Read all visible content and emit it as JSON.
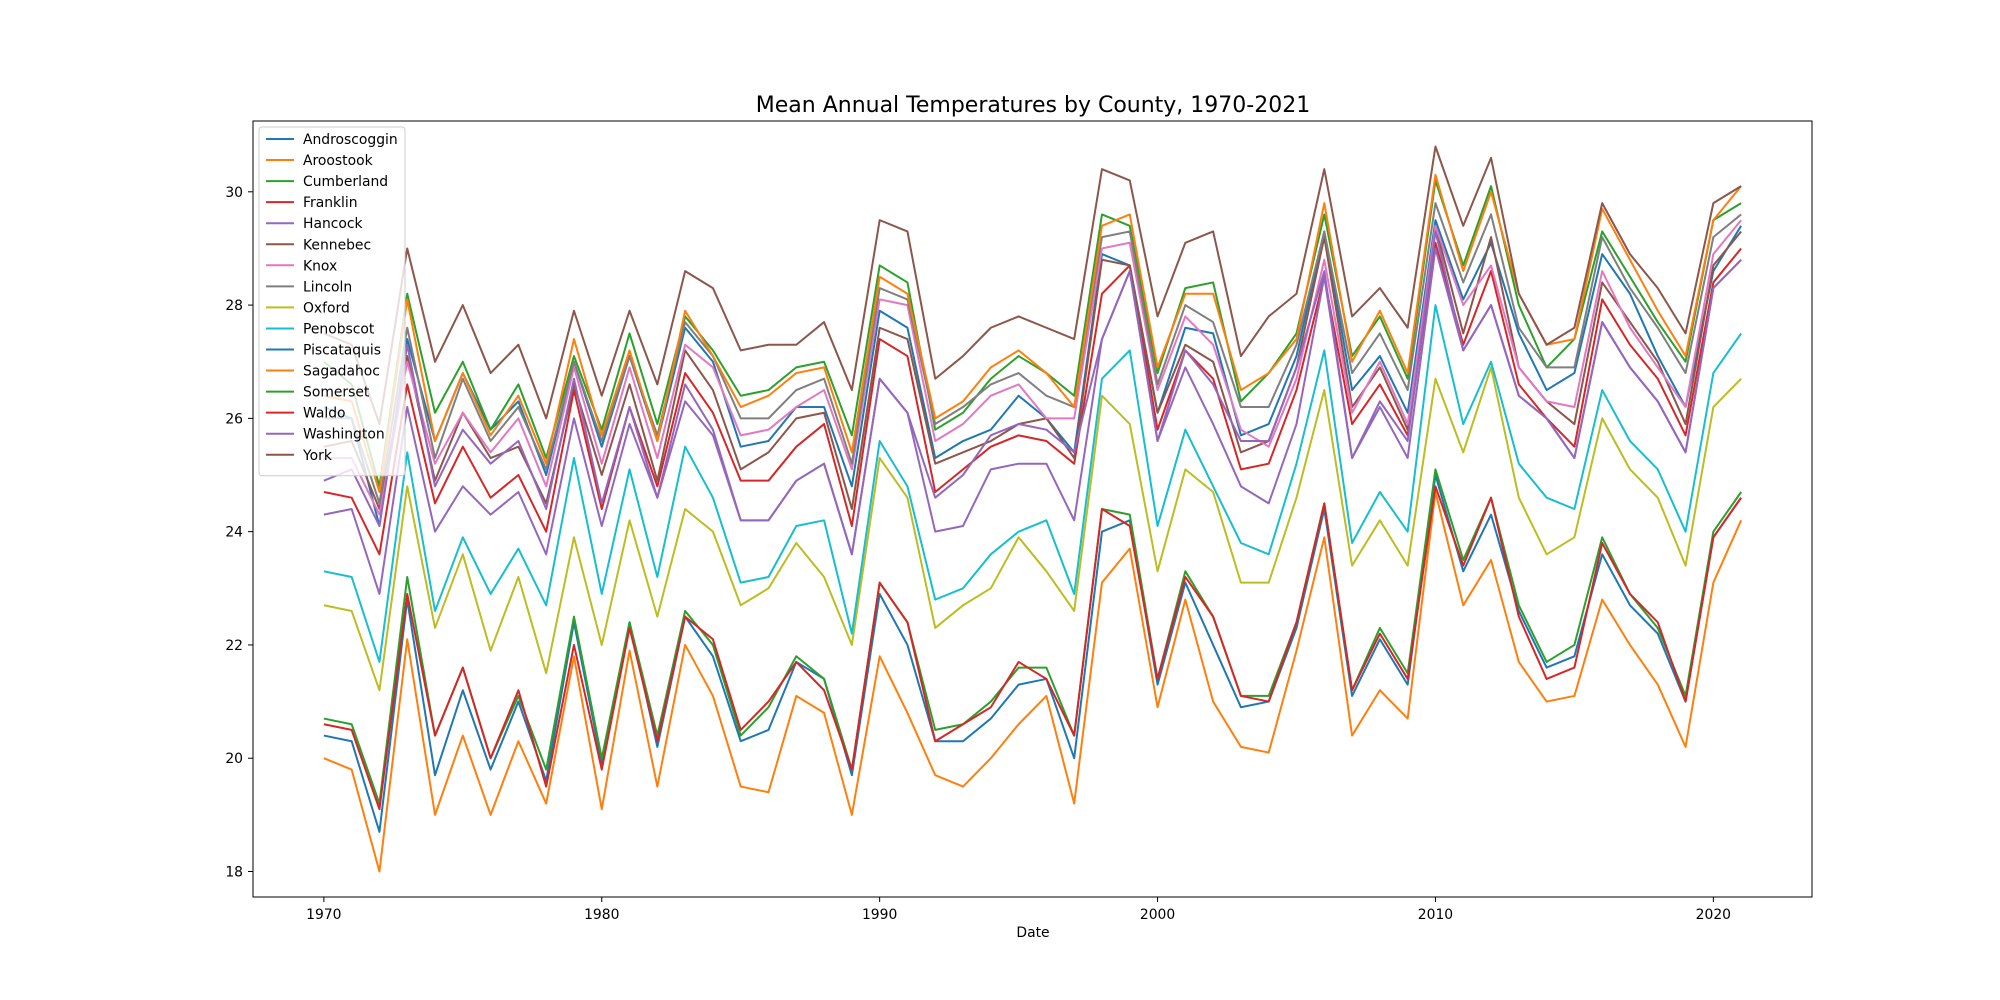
{
  "chart_data": {
    "type": "line",
    "title": "Mean Annual Temperatures by County, 1970-2021",
    "xlabel": "Date",
    "ylabel": "",
    "xlim": [
      1967.45,
      2023.55
    ],
    "ylim": [
      17.55,
      31.25
    ],
    "xticks": [
      1970,
      1980,
      1990,
      2000,
      2010,
      2020
    ],
    "yticks": [
      18,
      20,
      22,
      24,
      26,
      28,
      30
    ],
    "legend_position": "upper left",
    "grid": false,
    "x": [
      1970,
      1971,
      1972,
      1973,
      1974,
      1975,
      1976,
      1977,
      1978,
      1979,
      1980,
      1981,
      1982,
      1983,
      1984,
      1985,
      1986,
      1987,
      1988,
      1989,
      1990,
      1991,
      1992,
      1993,
      1994,
      1995,
      1996,
      1997,
      1998,
      1999,
      2000,
      2001,
      2002,
      2003,
      2004,
      2005,
      2006,
      2007,
      2008,
      2009,
      2010,
      2011,
      2012,
      2013,
      2014,
      2015,
      2016,
      2017,
      2018,
      2019,
      2020,
      2021
    ],
    "series": [
      {
        "name": "Androscoggin",
        "color": "#1f77b4",
        "values": [
          26.2,
          26.0,
          24.1,
          27.4,
          25.6,
          26.8,
          25.8,
          26.3,
          25.0,
          27.0,
          25.5,
          27.1,
          25.6,
          27.6,
          27.0,
          25.5,
          25.6,
          26.2,
          26.2,
          24.8,
          27.9,
          27.6,
          25.3,
          25.6,
          25.8,
          26.4,
          26.0,
          25.4,
          28.9,
          28.7,
          26.1,
          27.6,
          27.5,
          25.7,
          25.9,
          27.1,
          29.3,
          26.5,
          27.1,
          26.1,
          29.5,
          28.1,
          29.1,
          27.5,
          26.5,
          26.8,
          28.9,
          28.2,
          27.1,
          26.2,
          28.6,
          29.4
        ]
      },
      {
        "name": "Aroostook",
        "color": "#ff7f0e",
        "values": [
          20.0,
          19.8,
          18.0,
          22.1,
          19.0,
          20.4,
          19.0,
          20.3,
          19.2,
          21.8,
          19.1,
          21.9,
          19.5,
          22.0,
          21.1,
          19.5,
          19.4,
          21.1,
          20.8,
          19.0,
          21.8,
          20.8,
          19.7,
          19.5,
          20.0,
          20.6,
          21.1,
          19.2,
          23.1,
          23.7,
          20.9,
          22.8,
          21.0,
          20.2,
          20.1,
          21.9,
          23.9,
          20.4,
          21.2,
          20.7,
          24.7,
          22.7,
          23.5,
          21.7,
          21.0,
          21.1,
          22.8,
          22.0,
          21.3,
          20.2,
          23.1,
          24.2
        ]
      },
      {
        "name": "Cumberland",
        "color": "#2ca02c",
        "values": [
          27.0,
          26.6,
          24.8,
          28.2,
          26.1,
          27.0,
          25.8,
          26.6,
          25.3,
          27.1,
          25.8,
          27.5,
          25.9,
          27.8,
          27.2,
          26.4,
          26.5,
          26.9,
          27.0,
          25.7,
          28.7,
          28.4,
          25.8,
          26.1,
          26.7,
          27.1,
          26.8,
          26.4,
          29.6,
          29.4,
          26.8,
          28.3,
          28.4,
          26.3,
          26.8,
          27.5,
          29.6,
          27.1,
          27.8,
          26.7,
          30.2,
          28.7,
          30.1,
          28.0,
          26.9,
          27.4,
          29.3,
          28.5,
          27.7,
          27.0,
          29.5,
          29.8
        ]
      },
      {
        "name": "Franklin",
        "color": "#d62728",
        "values": [
          24.7,
          24.6,
          23.6,
          26.6,
          24.5,
          25.5,
          24.6,
          25.0,
          24.0,
          26.5,
          24.4,
          26.2,
          24.8,
          26.8,
          26.1,
          24.9,
          24.9,
          25.5,
          25.9,
          24.1,
          27.4,
          27.1,
          24.7,
          25.1,
          25.5,
          25.7,
          25.6,
          25.2,
          28.2,
          28.7,
          25.8,
          27.2,
          26.7,
          25.1,
          25.2,
          26.5,
          28.5,
          25.9,
          26.6,
          25.7,
          29.1,
          27.3,
          28.6,
          26.6,
          26.0,
          25.5,
          28.1,
          27.3,
          26.7,
          25.7,
          28.4,
          29.0
        ]
      },
      {
        "name": "Hancock",
        "color": "#9467bd",
        "values": [
          24.3,
          24.4,
          22.9,
          26.2,
          24.0,
          24.8,
          24.3,
          24.7,
          23.6,
          26.0,
          24.1,
          25.9,
          24.6,
          26.3,
          25.7,
          24.2,
          24.2,
          24.9,
          25.2,
          23.6,
          26.7,
          26.1,
          24.0,
          24.1,
          25.1,
          25.2,
          25.2,
          24.2,
          27.4,
          28.6,
          25.6,
          26.9,
          25.9,
          24.8,
          24.5,
          25.9,
          28.5,
          25.3,
          26.2,
          25.3,
          29.0,
          27.2,
          28.0,
          26.4,
          26.0,
          25.3,
          27.7,
          26.9,
          26.3,
          25.4,
          28.3,
          28.8
        ]
      },
      {
        "name": "Kennebec",
        "color": "#8c564b",
        "values": [
          25.5,
          25.6,
          24.4,
          27.1,
          24.9,
          26.1,
          25.3,
          25.5,
          24.5,
          26.6,
          25.0,
          26.6,
          24.9,
          27.2,
          26.5,
          25.1,
          25.4,
          26.0,
          26.1,
          24.4,
          27.6,
          27.4,
          25.2,
          25.4,
          25.6,
          25.9,
          26.0,
          25.3,
          28.8,
          28.7,
          26.1,
          27.3,
          27.0,
          25.4,
          25.6,
          26.9,
          29.2,
          26.2,
          26.9,
          25.8,
          29.4,
          27.5,
          29.2,
          26.9,
          26.3,
          25.9,
          28.4,
          27.7,
          27.0,
          25.9,
          28.7,
          29.3
        ]
      },
      {
        "name": "Knox",
        "color": "#e377c2",
        "values": [
          25.3,
          25.3,
          24.3,
          27.0,
          25.2,
          26.1,
          25.4,
          26.0,
          24.8,
          26.9,
          25.2,
          26.9,
          25.3,
          27.3,
          26.9,
          25.7,
          25.8,
          26.2,
          26.5,
          25.1,
          28.1,
          28.0,
          25.6,
          25.9,
          26.4,
          26.6,
          26.0,
          26.0,
          29.0,
          29.1,
          26.5,
          27.8,
          27.3,
          25.8,
          25.5,
          26.7,
          28.8,
          26.1,
          27.0,
          25.9,
          29.4,
          28.0,
          28.7,
          26.9,
          26.3,
          26.2,
          28.6,
          27.6,
          26.9,
          26.2,
          28.9,
          29.5
        ]
      },
      {
        "name": "Lincoln",
        "color": "#7f7f7f",
        "values": [
          26.0,
          26.0,
          24.5,
          27.6,
          25.3,
          26.7,
          25.6,
          26.2,
          25.1,
          27.0,
          25.6,
          27.1,
          25.7,
          27.7,
          27.1,
          26.0,
          26.0,
          26.5,
          26.7,
          25.2,
          28.3,
          28.1,
          25.9,
          26.2,
          26.6,
          26.8,
          26.4,
          26.2,
          29.2,
          29.3,
          26.6,
          28.0,
          27.7,
          26.2,
          26.2,
          27.3,
          29.3,
          26.8,
          27.5,
          26.5,
          29.8,
          28.4,
          29.6,
          27.6,
          26.9,
          26.9,
          29.2,
          28.3,
          27.6,
          26.8,
          29.2,
          29.6
        ]
      },
      {
        "name": "Oxford",
        "color": "#bcbd22",
        "values": [
          22.7,
          22.6,
          21.2,
          24.8,
          22.3,
          23.6,
          21.9,
          23.2,
          21.5,
          23.9,
          22.0,
          24.2,
          22.5,
          24.4,
          24.0,
          22.7,
          23.0,
          23.8,
          23.2,
          22.0,
          25.3,
          24.6,
          22.3,
          22.7,
          23.0,
          23.9,
          23.3,
          22.6,
          26.4,
          25.9,
          23.3,
          25.1,
          24.7,
          23.1,
          23.1,
          24.6,
          26.5,
          23.4,
          24.2,
          23.4,
          26.7,
          25.4,
          26.9,
          24.6,
          23.6,
          23.9,
          26.0,
          25.1,
          24.6,
          23.4,
          26.2,
          26.7
        ]
      },
      {
        "name": "Penobscot",
        "color": "#17becf",
        "values": [
          23.3,
          23.2,
          21.7,
          25.4,
          22.6,
          23.9,
          22.9,
          23.7,
          22.7,
          25.3,
          22.9,
          25.1,
          23.2,
          25.5,
          24.6,
          23.1,
          23.2,
          24.1,
          24.2,
          22.2,
          25.6,
          24.8,
          22.8,
          23.0,
          23.6,
          24.0,
          24.2,
          22.9,
          26.7,
          27.2,
          24.1,
          25.8,
          24.8,
          23.8,
          23.6,
          25.2,
          27.2,
          23.8,
          24.7,
          24.0,
          28.0,
          25.9,
          27.0,
          25.2,
          24.6,
          24.4,
          26.5,
          25.6,
          25.1,
          24.0,
          26.8,
          27.5
        ]
      },
      {
        "name": "Piscataquis",
        "color": "#1f77b4",
        "values": [
          20.4,
          20.3,
          18.7,
          22.8,
          19.7,
          21.2,
          19.8,
          21.0,
          19.6,
          22.4,
          19.9,
          22.4,
          20.2,
          22.5,
          21.8,
          20.3,
          20.5,
          21.7,
          21.4,
          19.7,
          22.9,
          22.0,
          20.3,
          20.3,
          20.7,
          21.3,
          21.4,
          20.0,
          24.0,
          24.2,
          21.3,
          23.1,
          22.0,
          20.9,
          21.0,
          22.3,
          24.4,
          21.1,
          22.1,
          21.3,
          25.0,
          23.3,
          24.3,
          22.6,
          21.6,
          21.8,
          23.6,
          22.7,
          22.2,
          21.0,
          23.9,
          24.6
        ]
      },
      {
        "name": "Sagadahoc",
        "color": "#ff7f0e",
        "values": [
          26.4,
          26.3,
          24.7,
          28.1,
          25.6,
          26.8,
          25.7,
          26.4,
          25.2,
          27.4,
          25.7,
          27.2,
          25.6,
          27.9,
          27.1,
          26.2,
          26.4,
          26.8,
          26.9,
          25.4,
          28.5,
          28.2,
          26.0,
          26.3,
          26.9,
          27.2,
          26.8,
          26.2,
          29.4,
          29.6,
          26.9,
          28.2,
          28.2,
          26.5,
          26.8,
          27.4,
          29.8,
          27.0,
          27.9,
          26.8,
          30.3,
          28.6,
          30.0,
          28.2,
          27.3,
          27.4,
          29.7,
          28.8,
          27.9,
          27.1,
          29.5,
          30.1
        ]
      },
      {
        "name": "Somerset",
        "color": "#2ca02c",
        "values": [
          20.7,
          20.6,
          19.2,
          23.2,
          20.4,
          21.6,
          20.0,
          21.1,
          19.8,
          22.5,
          20.0,
          22.4,
          20.4,
          22.6,
          22.0,
          20.4,
          20.9,
          21.8,
          21.4,
          19.8,
          23.1,
          22.4,
          20.5,
          20.6,
          21.0,
          21.6,
          21.6,
          20.4,
          24.4,
          24.3,
          21.4,
          23.3,
          22.5,
          21.1,
          21.1,
          22.4,
          24.5,
          21.2,
          22.3,
          21.5,
          25.1,
          23.5,
          24.6,
          22.7,
          21.7,
          22.0,
          23.9,
          22.9,
          22.3,
          21.1,
          24.0,
          24.7
        ]
      },
      {
        "name": "Waldo",
        "color": "#d62728",
        "values": [
          20.6,
          20.5,
          19.1,
          22.9,
          20.4,
          21.6,
          20.0,
          21.2,
          19.5,
          22.0,
          19.8,
          22.3,
          20.3,
          22.5,
          22.1,
          20.5,
          21.0,
          21.7,
          21.2,
          19.8,
          23.1,
          22.4,
          20.3,
          20.6,
          20.9,
          21.7,
          21.4,
          20.4,
          24.4,
          24.1,
          21.4,
          23.2,
          22.5,
          21.1,
          21.0,
          22.4,
          24.5,
          21.2,
          22.2,
          21.4,
          24.8,
          23.4,
          24.6,
          22.5,
          21.4,
          21.6,
          23.8,
          22.9,
          22.4,
          21.0,
          23.9,
          24.6
        ]
      },
      {
        "name": "Washington",
        "color": "#9467bd",
        "values": [
          24.9,
          25.1,
          24.1,
          27.3,
          24.8,
          25.8,
          25.2,
          25.6,
          24.4,
          26.7,
          24.5,
          26.2,
          24.6,
          26.6,
          25.8,
          24.2,
          24.2,
          24.9,
          25.2,
          23.6,
          26.7,
          26.1,
          24.6,
          25.0,
          25.7,
          25.9,
          25.8,
          25.4,
          27.4,
          28.6,
          25.6,
          27.2,
          26.6,
          25.6,
          25.6,
          26.9,
          28.6,
          25.3,
          26.3,
          25.6,
          29.3,
          27.2,
          28.0,
          26.4,
          26.0,
          25.3,
          27.7,
          26.9,
          26.3,
          25.4,
          28.3,
          28.8
        ]
      },
      {
        "name": "York",
        "color": "#8c564b",
        "values": [
          27.5,
          27.3,
          25.9,
          29.0,
          27.0,
          28.0,
          26.8,
          27.3,
          26.0,
          27.9,
          26.4,
          27.9,
          26.6,
          28.6,
          28.3,
          27.2,
          27.3,
          27.3,
          27.7,
          26.5,
          29.5,
          29.3,
          26.7,
          27.1,
          27.6,
          27.8,
          27.6,
          27.4,
          30.4,
          30.2,
          27.8,
          29.1,
          29.3,
          27.1,
          27.8,
          28.2,
          30.4,
          27.8,
          28.3,
          27.6,
          30.8,
          29.4,
          30.6,
          28.2,
          27.3,
          27.6,
          29.8,
          28.9,
          28.3,
          27.5,
          29.8,
          30.1
        ]
      }
    ]
  }
}
